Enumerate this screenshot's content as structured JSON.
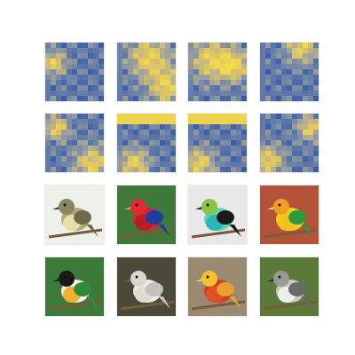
{
  "grid": {
    "rows": 4,
    "cols": 4,
    "heatmap_colors": [
      "#1f3f8f",
      "#3b5fa8",
      "#6d82a8",
      "#a7a79a",
      "#d9c36a",
      "#f2d84a"
    ],
    "birds": [
      {
        "name": "flycatcher",
        "row": 2,
        "col": 0,
        "bg": "#eef0ea",
        "body": "#b1a878",
        "belly": "#e6dfa8",
        "head": "#8a8660",
        "wing": "#6f6a4a",
        "beak": "#3a3a30"
      },
      {
        "name": "red-lory",
        "row": 2,
        "col": 1,
        "bg": "#3f7a3a",
        "body": "#d6242d",
        "belly": "#b81e2a",
        "head": "#e02a35",
        "wing": "#1f3fa0",
        "beak": "#f0a030"
      },
      {
        "name": "tanager",
        "row": 2,
        "col": 2,
        "bg": "#e8e8e8",
        "body": "#5fd4b8",
        "belly": "#2bb8b4",
        "head": "#8ac440",
        "wing": "#1a1a1a",
        "beak": "#222222"
      },
      {
        "name": "yellow-parrot",
        "row": 2,
        "col": 3,
        "bg": "#b5533a",
        "body": "#f3d11e",
        "belly": "#f5c01a",
        "head": "#f0a020",
        "wing": "#2a9a3a",
        "beak": "#e5e0d0"
      },
      {
        "name": "caique",
        "row": 3,
        "col": 0,
        "bg": "#3d7a3a",
        "body": "#f2f2ee",
        "belly": "#f4b02a",
        "head": "#1a1a1a",
        "wing": "#2f8a3a",
        "beak": "#2a2a2a"
      },
      {
        "name": "ibis",
        "row": 3,
        "col": 1,
        "bg": "#4a4a38",
        "body": "#ecece6",
        "belly": "#dedad4",
        "head": "#d8d6d0",
        "wing": "#c4c0ba",
        "beak": "#6a6a6a"
      },
      {
        "name": "golden-pheasant",
        "row": 3,
        "col": 2,
        "bg": "#9a8a72",
        "body": "#d53a24",
        "belly": "#e0502a",
        "head": "#f3c22a",
        "wing": "#e8a030",
        "beak": "#f0d070"
      },
      {
        "name": "kingbird",
        "row": 3,
        "col": 3,
        "bg": "#5a7a3a",
        "body": "#c9c9c4",
        "belly": "#eeeeea",
        "head": "#9a9a96",
        "wing": "#6a6a66",
        "beak": "#2a2a2a"
      }
    ]
  }
}
